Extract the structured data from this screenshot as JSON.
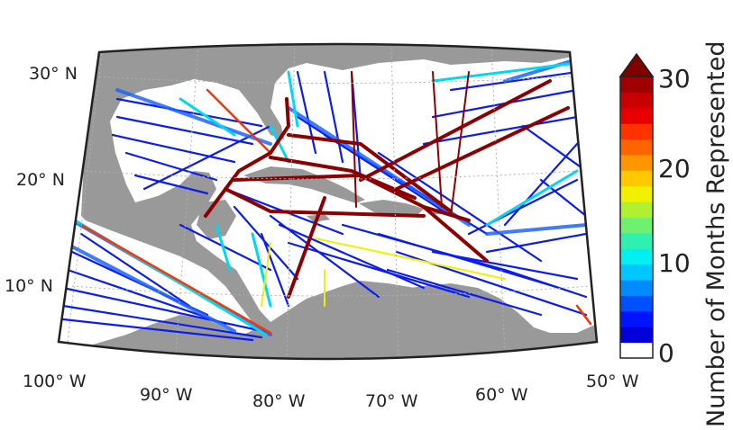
{
  "map": {
    "lat_labels": [
      "30° N",
      "20° N",
      "10° N"
    ],
    "lon_labels": [
      "100° W",
      "90° W",
      "80° W",
      "70° W",
      "60° W",
      "50° W"
    ]
  },
  "colorbar": {
    "title": "Number of Months Represented",
    "tick_labels": [
      "30",
      "20",
      "10",
      "0"
    ],
    "range": [
      0,
      30
    ],
    "extend": "max",
    "colors": [
      "#ffffff",
      "#0000d8",
      "#0014ff",
      "#0050ff",
      "#008cff",
      "#00c8ff",
      "#00f0f0",
      "#30f0b0",
      "#70f070",
      "#b0f030",
      "#f0f000",
      "#ffc800",
      "#ff9600",
      "#ff6400",
      "#ff3200",
      "#e60000",
      "#c80000",
      "#a00000",
      "#800000"
    ]
  },
  "colors": {
    "land": "#999999",
    "ocean": "#ffffff",
    "low": "#0a1cf0",
    "mid": "#00e0f0",
    "high": "#8b0000"
  }
}
